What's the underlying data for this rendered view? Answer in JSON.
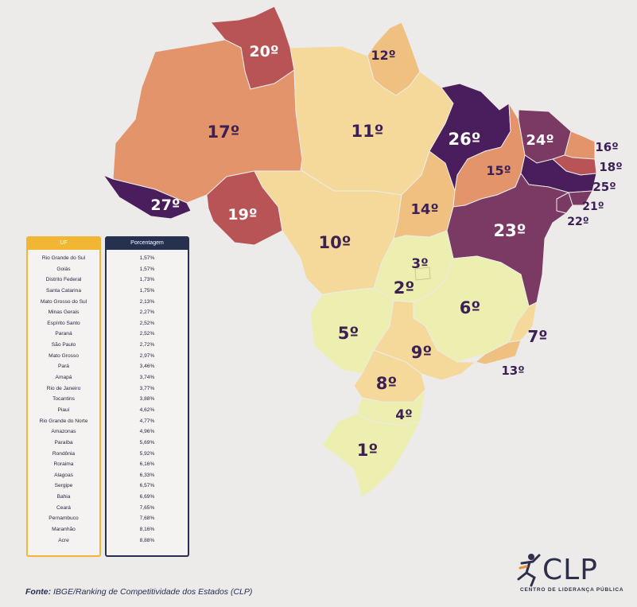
{
  "colors": {
    "rank_1_6": "#ecefb0",
    "rank_7_10": "#f4d99a",
    "rank_11_14": "#f0c080",
    "rank_15_18": "#e3946a",
    "rank_19_22": "#b85456",
    "rank_23_25": "#7a3a63",
    "rank_26_27": "#4a1d5c",
    "label_dark": "#3b1f55",
    "uf_header": "#f2b635",
    "pct_header": "#26304f"
  },
  "map": {
    "states": [
      {
        "uf": "Rio Grande do Sul",
        "rank": "1º"
      },
      {
        "uf": "Goiás",
        "rank": "2º"
      },
      {
        "uf": "Distrito Federal",
        "rank": "3º"
      },
      {
        "uf": "Santa Catarina",
        "rank": "4º"
      },
      {
        "uf": "Mato Grosso do Sul",
        "rank": "5º"
      },
      {
        "uf": "Minas Gerais",
        "rank": "6º"
      },
      {
        "uf": "Espírito Santo",
        "rank": "7º"
      },
      {
        "uf": "Paraná",
        "rank": "8º"
      },
      {
        "uf": "São Paulo",
        "rank": "9º"
      },
      {
        "uf": "Mato Grosso",
        "rank": "10º"
      },
      {
        "uf": "Pará",
        "rank": "11º"
      },
      {
        "uf": "Amapá",
        "rank": "12º"
      },
      {
        "uf": "Rio de Janeiro",
        "rank": "13º"
      },
      {
        "uf": "Tocantins",
        "rank": "14º"
      },
      {
        "uf": "Piauí",
        "rank": "15º"
      },
      {
        "uf": "Rio Grande do Norte",
        "rank": "16º"
      },
      {
        "uf": "Amazonas",
        "rank": "17º"
      },
      {
        "uf": "Paraíba",
        "rank": "18º"
      },
      {
        "uf": "Rondônia",
        "rank": "19º"
      },
      {
        "uf": "Roraima",
        "rank": "20º"
      },
      {
        "uf": "Alagoas",
        "rank": "21º"
      },
      {
        "uf": "Sergipe",
        "rank": "22º"
      },
      {
        "uf": "Bahia",
        "rank": "23º"
      },
      {
        "uf": "Ceará",
        "rank": "24º"
      },
      {
        "uf": "Pernambuco",
        "rank": "25º"
      },
      {
        "uf": "Maranhão",
        "rank": "26º"
      },
      {
        "uf": "Acre",
        "rank": "27º"
      }
    ]
  },
  "table": {
    "uf_header": "UF",
    "pct_header": "Porcentagem",
    "rows": [
      {
        "uf": "Rio Grande do Sul",
        "pct": "1,57%"
      },
      {
        "uf": "Goiás",
        "pct": "1,57%"
      },
      {
        "uf": "Distrito Federal",
        "pct": "1,73%"
      },
      {
        "uf": "Santa Catarina",
        "pct": "1,75%"
      },
      {
        "uf": "Mato Grosso do Sul",
        "pct": "2,13%"
      },
      {
        "uf": "Minas Gerais",
        "pct": "2,27%"
      },
      {
        "uf": "Espírito Santo",
        "pct": "2,52%"
      },
      {
        "uf": "Paraná",
        "pct": "2,52%"
      },
      {
        "uf": "São Paulo",
        "pct": "2,72%"
      },
      {
        "uf": "Mato Grosso",
        "pct": "2,97%"
      },
      {
        "uf": "Pará",
        "pct": "3,46%"
      },
      {
        "uf": "Amapá",
        "pct": "3,74%"
      },
      {
        "uf": "Rio de Janeiro",
        "pct": "3,77%"
      },
      {
        "uf": "Tocantins",
        "pct": "3,88%"
      },
      {
        "uf": "Piauí",
        "pct": "4,62%"
      },
      {
        "uf": "Rio Grande do Norte",
        "pct": "4,77%"
      },
      {
        "uf": "Amazonas",
        "pct": "4,96%"
      },
      {
        "uf": "Paraíba",
        "pct": "5,69%"
      },
      {
        "uf": "Rondônia",
        "pct": "5,92%"
      },
      {
        "uf": "Roraima",
        "pct": "6,16%"
      },
      {
        "uf": "Alagoas",
        "pct": "6,33%"
      },
      {
        "uf": "Sergipe",
        "pct": "6,57%"
      },
      {
        "uf": "Bahia",
        "pct": "6,69%"
      },
      {
        "uf": "Ceará",
        "pct": "7,65%"
      },
      {
        "uf": "Pernambuco",
        "pct": "7,68%"
      },
      {
        "uf": "Maranhão",
        "pct": "8,16%"
      },
      {
        "uf": "Acre",
        "pct": "8,88%"
      }
    ]
  },
  "source": {
    "label": "Fonte:",
    "text": "IBGE/Ranking de Competitividade dos Estados (CLP)"
  },
  "logo": {
    "name": "CLP",
    "subtitle": "CENTRO DE LIDERANÇA PÚBLICA",
    "icon": "runner-figure-icon"
  }
}
